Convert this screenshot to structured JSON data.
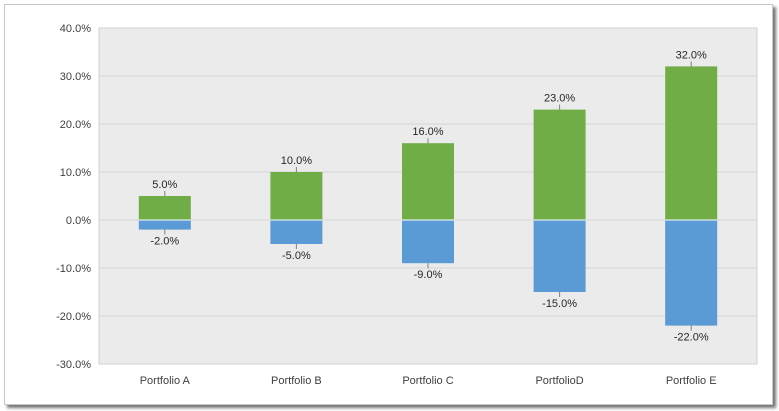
{
  "chart_data": {
    "type": "bar",
    "stacked": true,
    "categories": [
      "Portfolio A",
      "Portfolio B",
      "Portfolio C",
      "PortfolioD",
      "Portfolio E"
    ],
    "series": [
      {
        "values": [
          5.0,
          10.0,
          16.0,
          23.0,
          32.0
        ],
        "color": "#70ad47"
      },
      {
        "values": [
          -2.0,
          -5.0,
          -9.0,
          -15.0,
          -22.0
        ],
        "color": "#5b9bd5"
      }
    ],
    "data_labels": {
      "positive": [
        "5.0%",
        "10.0%",
        "16.0%",
        "23.0%",
        "32.0%"
      ],
      "negative": [
        "-2.0%",
        "-5.0%",
        "-9.0%",
        "-15.0%",
        "-22.0%"
      ]
    },
    "y_ticks": [
      "40.0%",
      "30.0%",
      "20.0%",
      "10.0%",
      "0.0%",
      "-10.0%",
      "-20.0%",
      "-30.0%"
    ],
    "ylim": [
      -30,
      40
    ],
    "grid": true,
    "plot_background": "#ebebeb",
    "title": "",
    "xlabel": "",
    "ylabel": ""
  }
}
